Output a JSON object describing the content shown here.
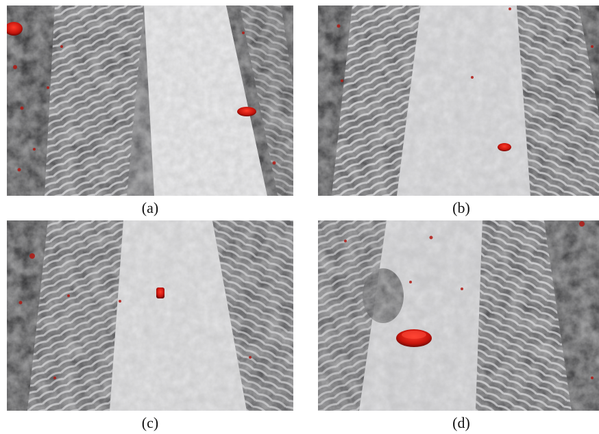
{
  "figure": {
    "panels": [
      {
        "id": "a",
        "caption": "(a)"
      },
      {
        "id": "b",
        "caption": "(b)"
      },
      {
        "id": "c",
        "caption": "(c)"
      },
      {
        "id": "d",
        "caption": "(d)"
      }
    ]
  },
  "colors": {
    "snow_light": "#e8e8ea",
    "snow_mid": "#bdbdc0",
    "track_dark": "#3a3a3c",
    "marker_red": "#d01a10"
  }
}
